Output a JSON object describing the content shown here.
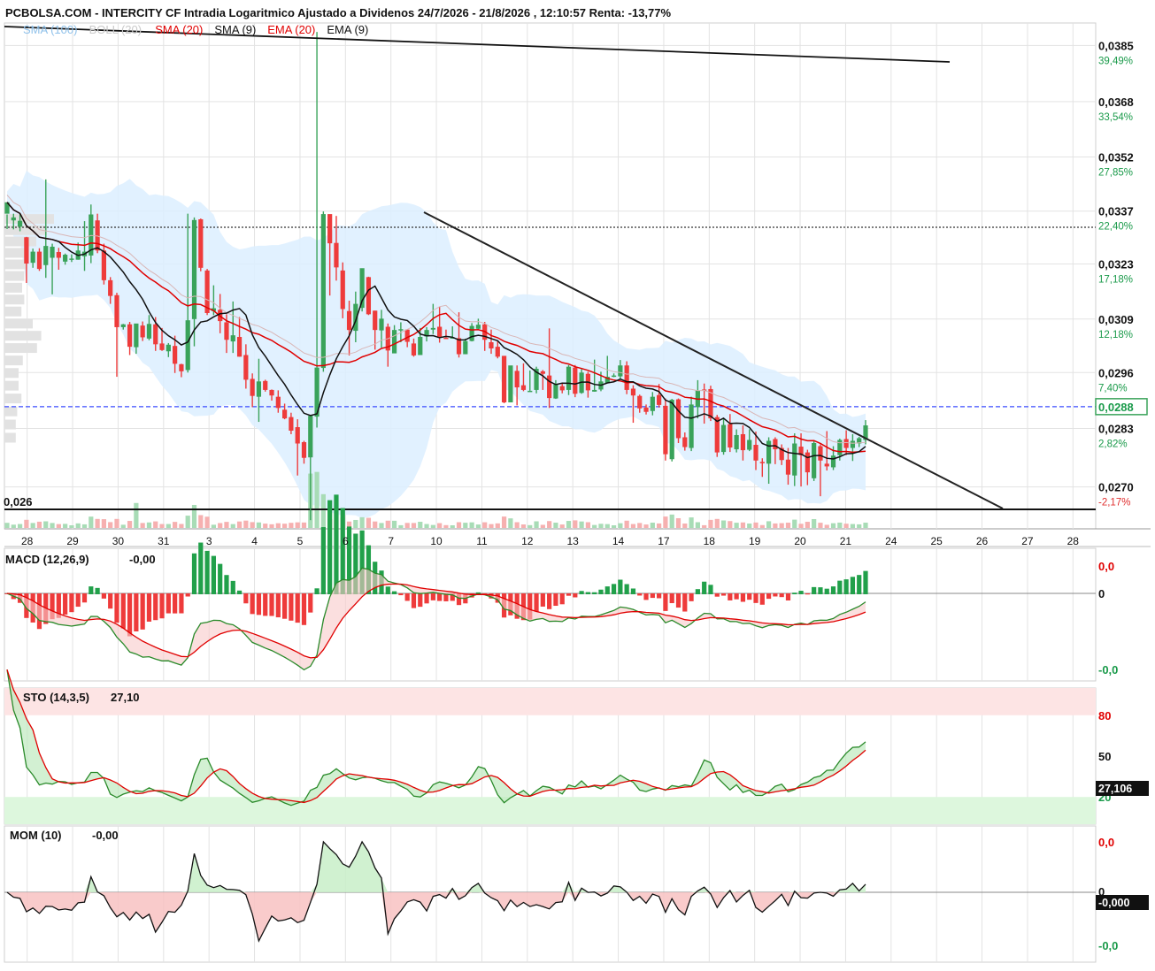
{
  "header": {
    "title": "PCBOLSA.COM - INTERCITY CF Intradia Logaritmico Ajustado a Dividenos 24/7/2026 - 21/8/2026 , 12:10:57 Renta: -13,77%"
  },
  "colors": {
    "up": "#3aa35a",
    "down": "#ee3b3b",
    "bollinger_fill": "#dcefff",
    "sma20": "#e00000",
    "sma9": "#111111",
    "ema20": "#e00000",
    "price_line": "#3b4cff",
    "macd_pos": "#21a04a",
    "macd_neg": "#ee3b3b",
    "sto_overbought": "#fde4e4",
    "sto_oversold": "#ddf7dd",
    "grid": "#e3e3e3"
  },
  "main_panel": {
    "legend": [
      {
        "label": "SMA (100)",
        "color": "#8fc1ea"
      },
      {
        "label": "BOLL (20)",
        "color": "#c9c9c9"
      },
      {
        "label": "SMA (20)",
        "color": "#e00000"
      },
      {
        "label": "SMA (9)",
        "color": "#111111"
      },
      {
        "label": "EMA (20)",
        "color": "#e00000"
      },
      {
        "label": "EMA (9)",
        "color": "#111111"
      }
    ],
    "y_ticks": [
      {
        "price": "0,0385",
        "pct": "39,49%",
        "pct_color": "#1a9a4a"
      },
      {
        "price": "0,0368",
        "pct": "33,54%",
        "pct_color": "#1a9a4a"
      },
      {
        "price": "0,0352",
        "pct": "27,85%",
        "pct_color": "#1a9a4a"
      },
      {
        "price": "0,0337",
        "pct": "22,40%",
        "pct_color": "#1a9a4a"
      },
      {
        "price": "0,0323",
        "pct": "17,18%",
        "pct_color": "#1a9a4a"
      },
      {
        "price": "0,0309",
        "pct": "12,18%",
        "pct_color": "#1a9a4a"
      },
      {
        "price": "0,0296",
        "pct": "7,40%",
        "pct_color": "#1a9a4a"
      },
      {
        "price": "0,0283",
        "pct": "2,82%",
        "pct_color": "#1a9a4a"
      },
      {
        "price": "0,0270",
        "pct": "-2,17%",
        "pct_color": "#e03030"
      }
    ],
    "current_price": "0,0288",
    "support_label": "0,026",
    "x_labels": [
      "28",
      "29",
      "30",
      "31",
      "3",
      "4",
      "5",
      "6",
      "7",
      "10",
      "11",
      "12",
      "13",
      "14",
      "17",
      "18",
      "19",
      "20",
      "21",
      "24",
      "25",
      "26",
      "27",
      "28"
    ]
  },
  "macd_panel": {
    "label": "MACD (12,26,9)",
    "value": "-0,00",
    "y_ticks": [
      {
        "text": "0,0",
        "color": "#e00000"
      },
      {
        "text": "0",
        "color": "#111111"
      },
      {
        "text": "-0,0",
        "color": "#1a9a4a"
      }
    ]
  },
  "sto_panel": {
    "label": "STO (14,3,5)",
    "value": "27,10",
    "y_ticks": [
      {
        "text": "80",
        "color": "#e00000"
      },
      {
        "text": "50",
        "color": "#111111"
      },
      {
        "text": "20",
        "color": "#1a9a4a"
      }
    ],
    "current": "27,106"
  },
  "mom_panel": {
    "label": "MOM (10)",
    "value": "-0,00",
    "y_ticks": [
      {
        "text": "0,0",
        "color": "#e00000"
      },
      {
        "text": "0",
        "color": "#111111"
      },
      {
        "text": "-0,0",
        "color": "#1a9a4a"
      }
    ],
    "current": "-0,000"
  },
  "chart_data": {
    "type": "candlestick",
    "y_scale": "log",
    "ylim": [
      0.0262,
      0.0392
    ],
    "reference_price": 0.0276,
    "current_price": 0.0288,
    "support_level": 0.026,
    "trendlines": [
      {
        "from": [
          "24/7",
          0.0386
        ],
        "to": [
          "25/8",
          0.0377
        ]
      },
      {
        "from": [
          "7/8",
          0.0336
        ],
        "to": [
          "26/8",
          0.0263
        ]
      }
    ],
    "candles": [
      [
        0.03363,
        0.03394,
        0.03361,
        0.03322
      ],
      [
        0.03345,
        0.03353,
        0.03363,
        0.03321
      ],
      [
        0.03328,
        0.03344,
        0.03363,
        0.03316
      ],
      [
        0.033,
        0.03231,
        0.03301,
        0.03181
      ],
      [
        0.03233,
        0.03262,
        0.0327,
        0.0322
      ],
      [
        0.03262,
        0.03217,
        0.03271,
        0.03212
      ],
      [
        0.03227,
        0.03277,
        0.03457,
        0.03194
      ],
      [
        0.03246,
        0.03275,
        0.03283,
        0.03152
      ],
      [
        0.03261,
        0.03246,
        0.03272,
        0.03215
      ],
      [
        0.03236,
        0.03254,
        0.03257,
        0.03228
      ],
      [
        0.03244,
        0.03244,
        0.03255,
        0.03235
      ],
      [
        0.03241,
        0.03265,
        0.03286,
        0.03241
      ],
      [
        0.0325,
        0.03262,
        0.03343,
        0.03212
      ],
      [
        0.03252,
        0.03361,
        0.03388,
        0.03232
      ],
      [
        0.03345,
        0.03265,
        0.03363,
        0.03258
      ],
      [
        0.03265,
        0.03188,
        0.03283,
        0.03177
      ],
      [
        0.03188,
        0.03148,
        0.03196,
        0.03128
      ],
      [
        0.0315,
        0.0307,
        0.03156,
        0.0295
      ],
      [
        0.0307,
        0.03077,
        0.03078,
        0.03064
      ],
      [
        0.03077,
        0.03022,
        0.03083,
        0.03002
      ],
      [
        0.03021,
        0.03079,
        0.03078,
        0.03005
      ],
      [
        0.03074,
        0.03045,
        0.03084,
        0.03036
      ],
      [
        0.03042,
        0.03078,
        0.031,
        0.03038
      ],
      [
        0.03077,
        0.03028,
        0.03095,
        0.03012
      ],
      [
        0.0303,
        0.03014,
        0.03068,
        0.03012
      ],
      [
        0.03011,
        0.03027,
        0.03031,
        0.02997
      ],
      [
        0.03024,
        0.02981,
        0.03049,
        0.02959
      ],
      [
        0.0298,
        0.02963,
        0.02981,
        0.02949
      ],
      [
        0.02966,
        0.03087,
        0.03363,
        0.0296
      ],
      [
        0.0309,
        0.03346,
        0.03353,
        0.03023
      ],
      [
        0.03348,
        0.0322,
        0.0335,
        0.03211
      ],
      [
        0.03213,
        0.03105,
        0.03217,
        0.031
      ],
      [
        0.0311,
        0.03117,
        0.03175,
        0.031
      ],
      [
        0.03113,
        0.03085,
        0.03153,
        0.03055
      ],
      [
        0.03082,
        0.03039,
        0.03102,
        0.03007
      ],
      [
        0.03035,
        0.0305,
        0.03134,
        0.03007
      ],
      [
        0.03046,
        0.02998,
        0.03095,
        0.02998
      ],
      [
        0.03002,
        0.02943,
        0.03028,
        0.02922
      ],
      [
        0.02945,
        0.02905,
        0.02958,
        0.02879
      ],
      [
        0.02903,
        0.02939,
        0.02993,
        0.02845
      ],
      [
        0.0294,
        0.02919,
        0.02943,
        0.02915
      ],
      [
        0.02919,
        0.02906,
        0.0292,
        0.02894
      ],
      [
        0.02903,
        0.02877,
        0.02918,
        0.02866
      ],
      [
        0.02873,
        0.02853,
        0.02887,
        0.02851
      ],
      [
        0.02856,
        0.02825,
        0.02866,
        0.02817
      ],
      [
        0.02833,
        0.02796,
        0.02851,
        0.02725
      ],
      [
        0.02799,
        0.02764,
        0.02802,
        0.02751
      ],
      [
        0.02765,
        0.02859,
        0.02859,
        0.02629
      ],
      [
        0.02857,
        0.02972,
        0.03892,
        0.02832
      ],
      [
        0.02971,
        0.03362,
        0.03369,
        0.02962
      ],
      [
        0.03362,
        0.03284,
        0.03326,
        0.03149
      ],
      [
        0.03285,
        0.03221,
        0.03357,
        0.03187
      ],
      [
        0.03213,
        0.03115,
        0.03234,
        0.03092
      ],
      [
        0.0311,
        0.03063,
        0.03136,
        0.03001
      ],
      [
        0.03061,
        0.03128,
        0.03159,
        0.03033
      ],
      [
        0.03118,
        0.03219,
        0.0321,
        0.03109
      ],
      [
        0.03196,
        0.03102,
        0.03197,
        0.031
      ],
      [
        0.03111,
        0.03063,
        0.03111,
        0.03015
      ],
      [
        0.03062,
        0.03091,
        0.03113,
        0.0302
      ],
      [
        0.03071,
        0.03013,
        0.03079,
        0.02974
      ],
      [
        0.03006,
        0.03063,
        0.03075,
        0.03018
      ],
      [
        0.03064,
        0.03065,
        0.03082,
        0.03033
      ],
      [
        0.03064,
        0.03034,
        0.03065,
        0.03021
      ],
      [
        0.0303,
        0.03001,
        0.03042,
        0.02998
      ],
      [
        0.03002,
        0.03046,
        0.03068,
        0.03002
      ],
      [
        0.03047,
        0.03063,
        0.0307,
        0.03035
      ],
      [
        0.03064,
        0.03068,
        0.03128,
        0.03053
      ],
      [
        0.03071,
        0.03044,
        0.03121,
        0.03032
      ],
      [
        0.03044,
        0.03042,
        0.03064,
        0.03042
      ],
      [
        0.03045,
        0.03045,
        0.03072,
        0.03045
      ],
      [
        0.03043,
        0.03004,
        0.03107,
        0.02996
      ],
      [
        0.03004,
        0.03036,
        0.03042,
        0.03004
      ],
      [
        0.03036,
        0.03073,
        0.0308,
        0.03035
      ],
      [
        0.03066,
        0.03076,
        0.03091,
        0.03065
      ],
      [
        0.03077,
        0.03039,
        0.03083,
        0.03012
      ],
      [
        0.03033,
        0.03018,
        0.03064,
        0.03005
      ],
      [
        0.03022,
        0.02998,
        0.03036,
        0.02994
      ],
      [
        0.03,
        0.0289,
        0.03,
        0.02888
      ],
      [
        0.0289,
        0.02977,
        0.0297,
        0.0289
      ],
      [
        0.02964,
        0.02925,
        0.02977,
        0.02883
      ],
      [
        0.0293,
        0.02919,
        0.02982,
        0.02916
      ],
      [
        0.02915,
        0.02917,
        0.02965,
        0.02917
      ],
      [
        0.02919,
        0.02969,
        0.02974,
        0.02911
      ],
      [
        0.02963,
        0.02957,
        0.02966,
        0.02919
      ],
      [
        0.02953,
        0.029,
        0.03067,
        0.02877
      ],
      [
        0.02899,
        0.02932,
        0.02942,
        0.02898
      ],
      [
        0.02928,
        0.02918,
        0.02935,
        0.02911
      ],
      [
        0.02919,
        0.02974,
        0.02978,
        0.02907
      ],
      [
        0.02972,
        0.0291,
        0.02978,
        0.02902
      ],
      [
        0.02912,
        0.0296,
        0.02968,
        0.0291
      ],
      [
        0.02957,
        0.02918,
        0.02962,
        0.02901
      ],
      [
        0.02915,
        0.02919,
        0.02991,
        0.02915
      ],
      [
        0.0292,
        0.02939,
        0.02962,
        0.02916
      ],
      [
        0.02935,
        0.0295,
        0.03,
        0.02937
      ],
      [
        0.02953,
        0.02953,
        0.02958,
        0.02949
      ],
      [
        0.02951,
        0.02977,
        0.0299,
        0.02944
      ],
      [
        0.02977,
        0.02919,
        0.02987,
        0.02909
      ],
      [
        0.02922,
        0.02906,
        0.0293,
        0.02843
      ],
      [
        0.02905,
        0.02876,
        0.02908,
        0.02866
      ],
      [
        0.02878,
        0.02868,
        0.02885,
        0.02862
      ],
      [
        0.0287,
        0.02903,
        0.02914,
        0.0286
      ],
      [
        0.02907,
        0.02884,
        0.02933,
        0.02878
      ],
      [
        0.02882,
        0.02772,
        0.02899,
        0.02758
      ],
      [
        0.02761,
        0.02896,
        0.02898,
        0.02756
      ],
      [
        0.02897,
        0.02808,
        0.02899,
        0.02797
      ],
      [
        0.0281,
        0.02788,
        0.02821,
        0.0278
      ],
      [
        0.02786,
        0.02885,
        0.02903,
        0.02779
      ],
      [
        0.02879,
        0.02918,
        0.02942,
        0.02853
      ],
      [
        0.0292,
        0.02919,
        0.02934,
        0.02841
      ],
      [
        0.02921,
        0.02853,
        0.02929,
        0.02847
      ],
      [
        0.02856,
        0.02776,
        0.02861,
        0.02766
      ],
      [
        0.02777,
        0.02838,
        0.02852,
        0.02771
      ],
      [
        0.0284,
        0.02787,
        0.02863,
        0.02777
      ],
      [
        0.02783,
        0.02815,
        0.02828,
        0.02776
      ],
      [
        0.02817,
        0.02781,
        0.02837,
        0.02758
      ],
      [
        0.02782,
        0.02804,
        0.02828,
        0.02779
      ],
      [
        0.02793,
        0.02758,
        0.02823,
        0.02737
      ],
      [
        0.02755,
        0.02752,
        0.02763,
        0.02722
      ],
      [
        0.02751,
        0.02802,
        0.0281,
        0.02707
      ],
      [
        0.02806,
        0.02783,
        0.0281,
        0.0275
      ],
      [
        0.02786,
        0.02759,
        0.02794,
        0.02748
      ],
      [
        0.0276,
        0.02727,
        0.02786,
        0.02705
      ],
      [
        0.02725,
        0.02796,
        0.02819,
        0.02702
      ],
      [
        0.02789,
        0.0277,
        0.02819,
        0.02701
      ],
      [
        0.02776,
        0.02732,
        0.02782,
        0.02704
      ],
      [
        0.02719,
        0.02797,
        0.02803,
        0.02713
      ],
      [
        0.0279,
        0.02758,
        0.02794,
        0.0268
      ],
      [
        0.02751,
        0.02745,
        0.02824,
        0.02736
      ],
      [
        0.02743,
        0.02769,
        0.0279,
        0.02737
      ],
      [
        0.0277,
        0.02804,
        0.02807,
        0.02758
      ],
      [
        0.02806,
        0.02786,
        0.02826,
        0.0277
      ],
      [
        0.02786,
        0.02802,
        0.02817,
        0.02757
      ],
      [
        0.02796,
        0.02808,
        0.02811,
        0.02788
      ],
      [
        0.02804,
        0.02837,
        0.02849,
        0.02794
      ]
    ]
  }
}
